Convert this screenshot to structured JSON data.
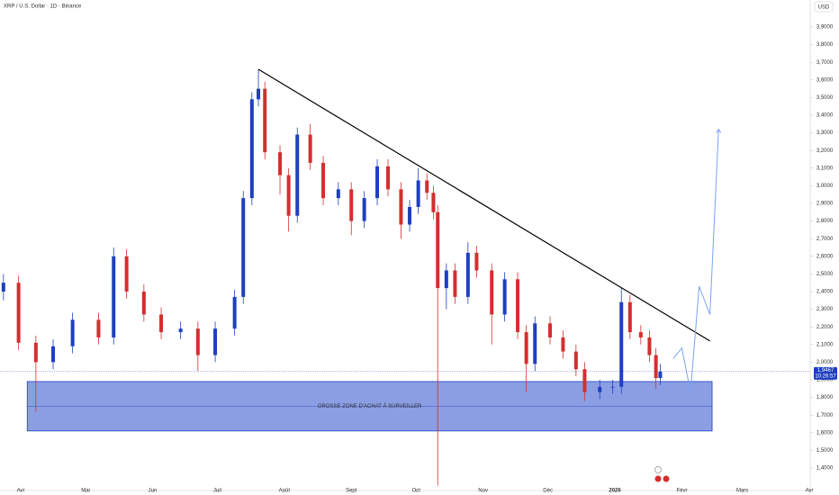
{
  "chart_data": {
    "type": "candlestick",
    "title": "XRP / U.S. Dollar · 1D · Binance",
    "currency": "USD",
    "x": [
      -8,
      -1,
      7,
      15,
      24,
      36,
      43,
      49,
      57,
      65,
      74,
      82,
      90,
      99,
      103,
      107,
      110,
      113,
      120,
      124,
      128,
      134,
      140,
      147,
      153,
      159,
      165,
      170,
      176,
      180,
      184,
      188,
      191,
      193,
      197,
      201,
      207,
      211,
      218,
      224,
      230,
      234,
      238,
      245,
      251,
      257,
      261,
      268,
      274,
      278,
      282,
      287,
      291,
      294,
      296
    ],
    "open": [
      2.4,
      2.45,
      2.11,
      2.0,
      2.09,
      2.24,
      2.14,
      2.6,
      2.4,
      2.27,
      2.17,
      2.19,
      2.04,
      2.19,
      2.37,
      2.93,
      3.49,
      3.55,
      3.19,
      3.06,
      2.83,
      3.29,
      3.13,
      2.93,
      2.98,
      2.8,
      2.93,
      3.11,
      2.98,
      2.78,
      2.88,
      3.03,
      2.96,
      2.85,
      2.42,
      2.52,
      2.37,
      2.62,
      2.52,
      2.27,
      2.47,
      2.17,
      1.99,
      2.22,
      2.14,
      2.06,
      1.96,
      1.83,
      1.86,
      1.86,
      2.34,
      2.17,
      2.14,
      2.04,
      1.91
    ],
    "high": [
      2.5,
      2.49,
      2.15,
      2.13,
      2.28,
      2.28,
      2.65,
      2.64,
      2.44,
      2.31,
      2.23,
      2.23,
      2.23,
      2.41,
      2.97,
      3.53,
      3.66,
      3.59,
      3.23,
      3.1,
      3.33,
      3.35,
      3.17,
      3.02,
      3.02,
      2.97,
      3.15,
      3.15,
      3.02,
      2.92,
      3.1,
      3.07,
      3.0,
      2.89,
      2.56,
      2.56,
      2.68,
      2.66,
      2.56,
      2.51,
      2.51,
      2.21,
      2.26,
      2.26,
      2.18,
      2.1,
      2.0,
      1.9,
      1.9,
      2.42,
      2.38,
      2.21,
      2.18,
      2.08,
      1.99
    ],
    "low": [
      2.35,
      2.07,
      1.72,
      1.96,
      2.05,
      2.1,
      2.1,
      2.36,
      2.23,
      2.13,
      2.13,
      1.95,
      2.0,
      2.15,
      2.33,
      2.89,
      3.45,
      3.15,
      2.95,
      2.74,
      2.79,
      3.09,
      2.89,
      2.89,
      2.72,
      2.76,
      2.89,
      2.94,
      2.7,
      2.74,
      2.84,
      2.92,
      2.81,
      1.3,
      2.3,
      2.33,
      2.33,
      2.48,
      2.1,
      2.23,
      2.13,
      1.83,
      1.95,
      2.1,
      2.02,
      1.92,
      1.78,
      1.79,
      1.82,
      1.82,
      2.13,
      2.1,
      2.0,
      1.85,
      1.87
    ],
    "close": [
      2.45,
      2.11,
      2.0,
      2.09,
      2.24,
      2.14,
      2.6,
      2.4,
      2.27,
      2.17,
      2.19,
      2.04,
      2.19,
      2.37,
      2.93,
      3.49,
      3.55,
      3.19,
      3.06,
      2.83,
      3.29,
      3.13,
      2.93,
      2.98,
      2.8,
      2.93,
      3.11,
      2.98,
      2.78,
      2.88,
      3.03,
      2.96,
      2.85,
      2.42,
      2.52,
      2.37,
      2.62,
      2.52,
      2.27,
      2.47,
      2.17,
      1.99,
      2.22,
      2.14,
      2.06,
      1.96,
      1.83,
      1.86,
      1.86,
      2.34,
      2.17,
      2.14,
      2.04,
      1.91,
      1.9467
    ],
    "up_color": "#1e3fbf",
    "down_color": "#d32f2f",
    "xlim": [
      -9.6,
      365.4
    ],
    "ylim": [
      1.2724,
      4.0531
    ],
    "xticks": [
      {
        "value": 0,
        "label": "Avr"
      },
      {
        "value": 30,
        "label": "Mai"
      },
      {
        "value": 61,
        "label": "Jun"
      },
      {
        "value": 91,
        "label": "Juil"
      },
      {
        "value": 122,
        "label": "Août"
      },
      {
        "value": 153,
        "label": "Sept"
      },
      {
        "value": 183,
        "label": "Oct"
      },
      {
        "value": 214,
        "label": "Nov"
      },
      {
        "value": 244,
        "label": "Déc"
      },
      {
        "value": 275,
        "label": "2026"
      },
      {
        "value": 306,
        "label": "Févr"
      },
      {
        "value": 334,
        "label": "Mars"
      },
      {
        "value": 365,
        "label": "Avr"
      }
    ],
    "yticks": [
      {
        "value": 1.4,
        "label": "1,4000"
      },
      {
        "value": 1.5,
        "label": "1,5000"
      },
      {
        "value": 1.6,
        "label": "1,6000"
      },
      {
        "value": 1.7,
        "label": "1,7000"
      },
      {
        "value": 1.8,
        "label": "1,8000"
      },
      {
        "value": 1.9,
        "label": "1,9000"
      },
      {
        "value": 2.0,
        "label": "2,0000"
      },
      {
        "value": 2.1,
        "label": "2,1000"
      },
      {
        "value": 2.2,
        "label": "2,2000"
      },
      {
        "value": 2.3,
        "label": "2,3000"
      },
      {
        "value": 2.4,
        "label": "2,4000"
      },
      {
        "value": 2.5,
        "label": "2,5000"
      },
      {
        "value": 2.6,
        "label": "2,6000"
      },
      {
        "value": 2.7,
        "label": "2,7000"
      },
      {
        "value": 2.8,
        "label": "2,8000"
      },
      {
        "value": 2.9,
        "label": "2,9000"
      },
      {
        "value": 3.0,
        "label": "3,0000"
      },
      {
        "value": 3.1,
        "label": "3,1000"
      },
      {
        "value": 3.2,
        "label": "3,2000"
      },
      {
        "value": 3.3,
        "label": "3,3000"
      },
      {
        "value": 3.4,
        "label": "3,4000"
      },
      {
        "value": 3.5,
        "label": "3,5000"
      },
      {
        "value": 3.6,
        "label": "3,6000"
      },
      {
        "value": 3.7,
        "label": "3,7000"
      },
      {
        "value": 3.8,
        "label": "3,8000"
      },
      {
        "value": 3.9,
        "label": "3,9000"
      }
    ],
    "trendline": {
      "x": [
        110,
        319
      ],
      "y": [
        3.66,
        2.12
      ],
      "color": "#000000"
    },
    "zone": {
      "x": [
        3,
        320
      ],
      "y": [
        1.61,
        1.89
      ],
      "label": "GROSSE ZONE D'ACHAT À SURVEILLER",
      "color": "#1a3ec7"
    },
    "projection": {
      "x": [
        302,
        306,
        310,
        314,
        319,
        323
      ],
      "y": [
        2.02,
        2.08,
        1.83,
        2.43,
        2.27,
        3.32
      ],
      "color": "#7aa2f0"
    },
    "last_price": {
      "value": 1.9467,
      "label": "1,9467"
    },
    "countdown": "10:26:57"
  }
}
